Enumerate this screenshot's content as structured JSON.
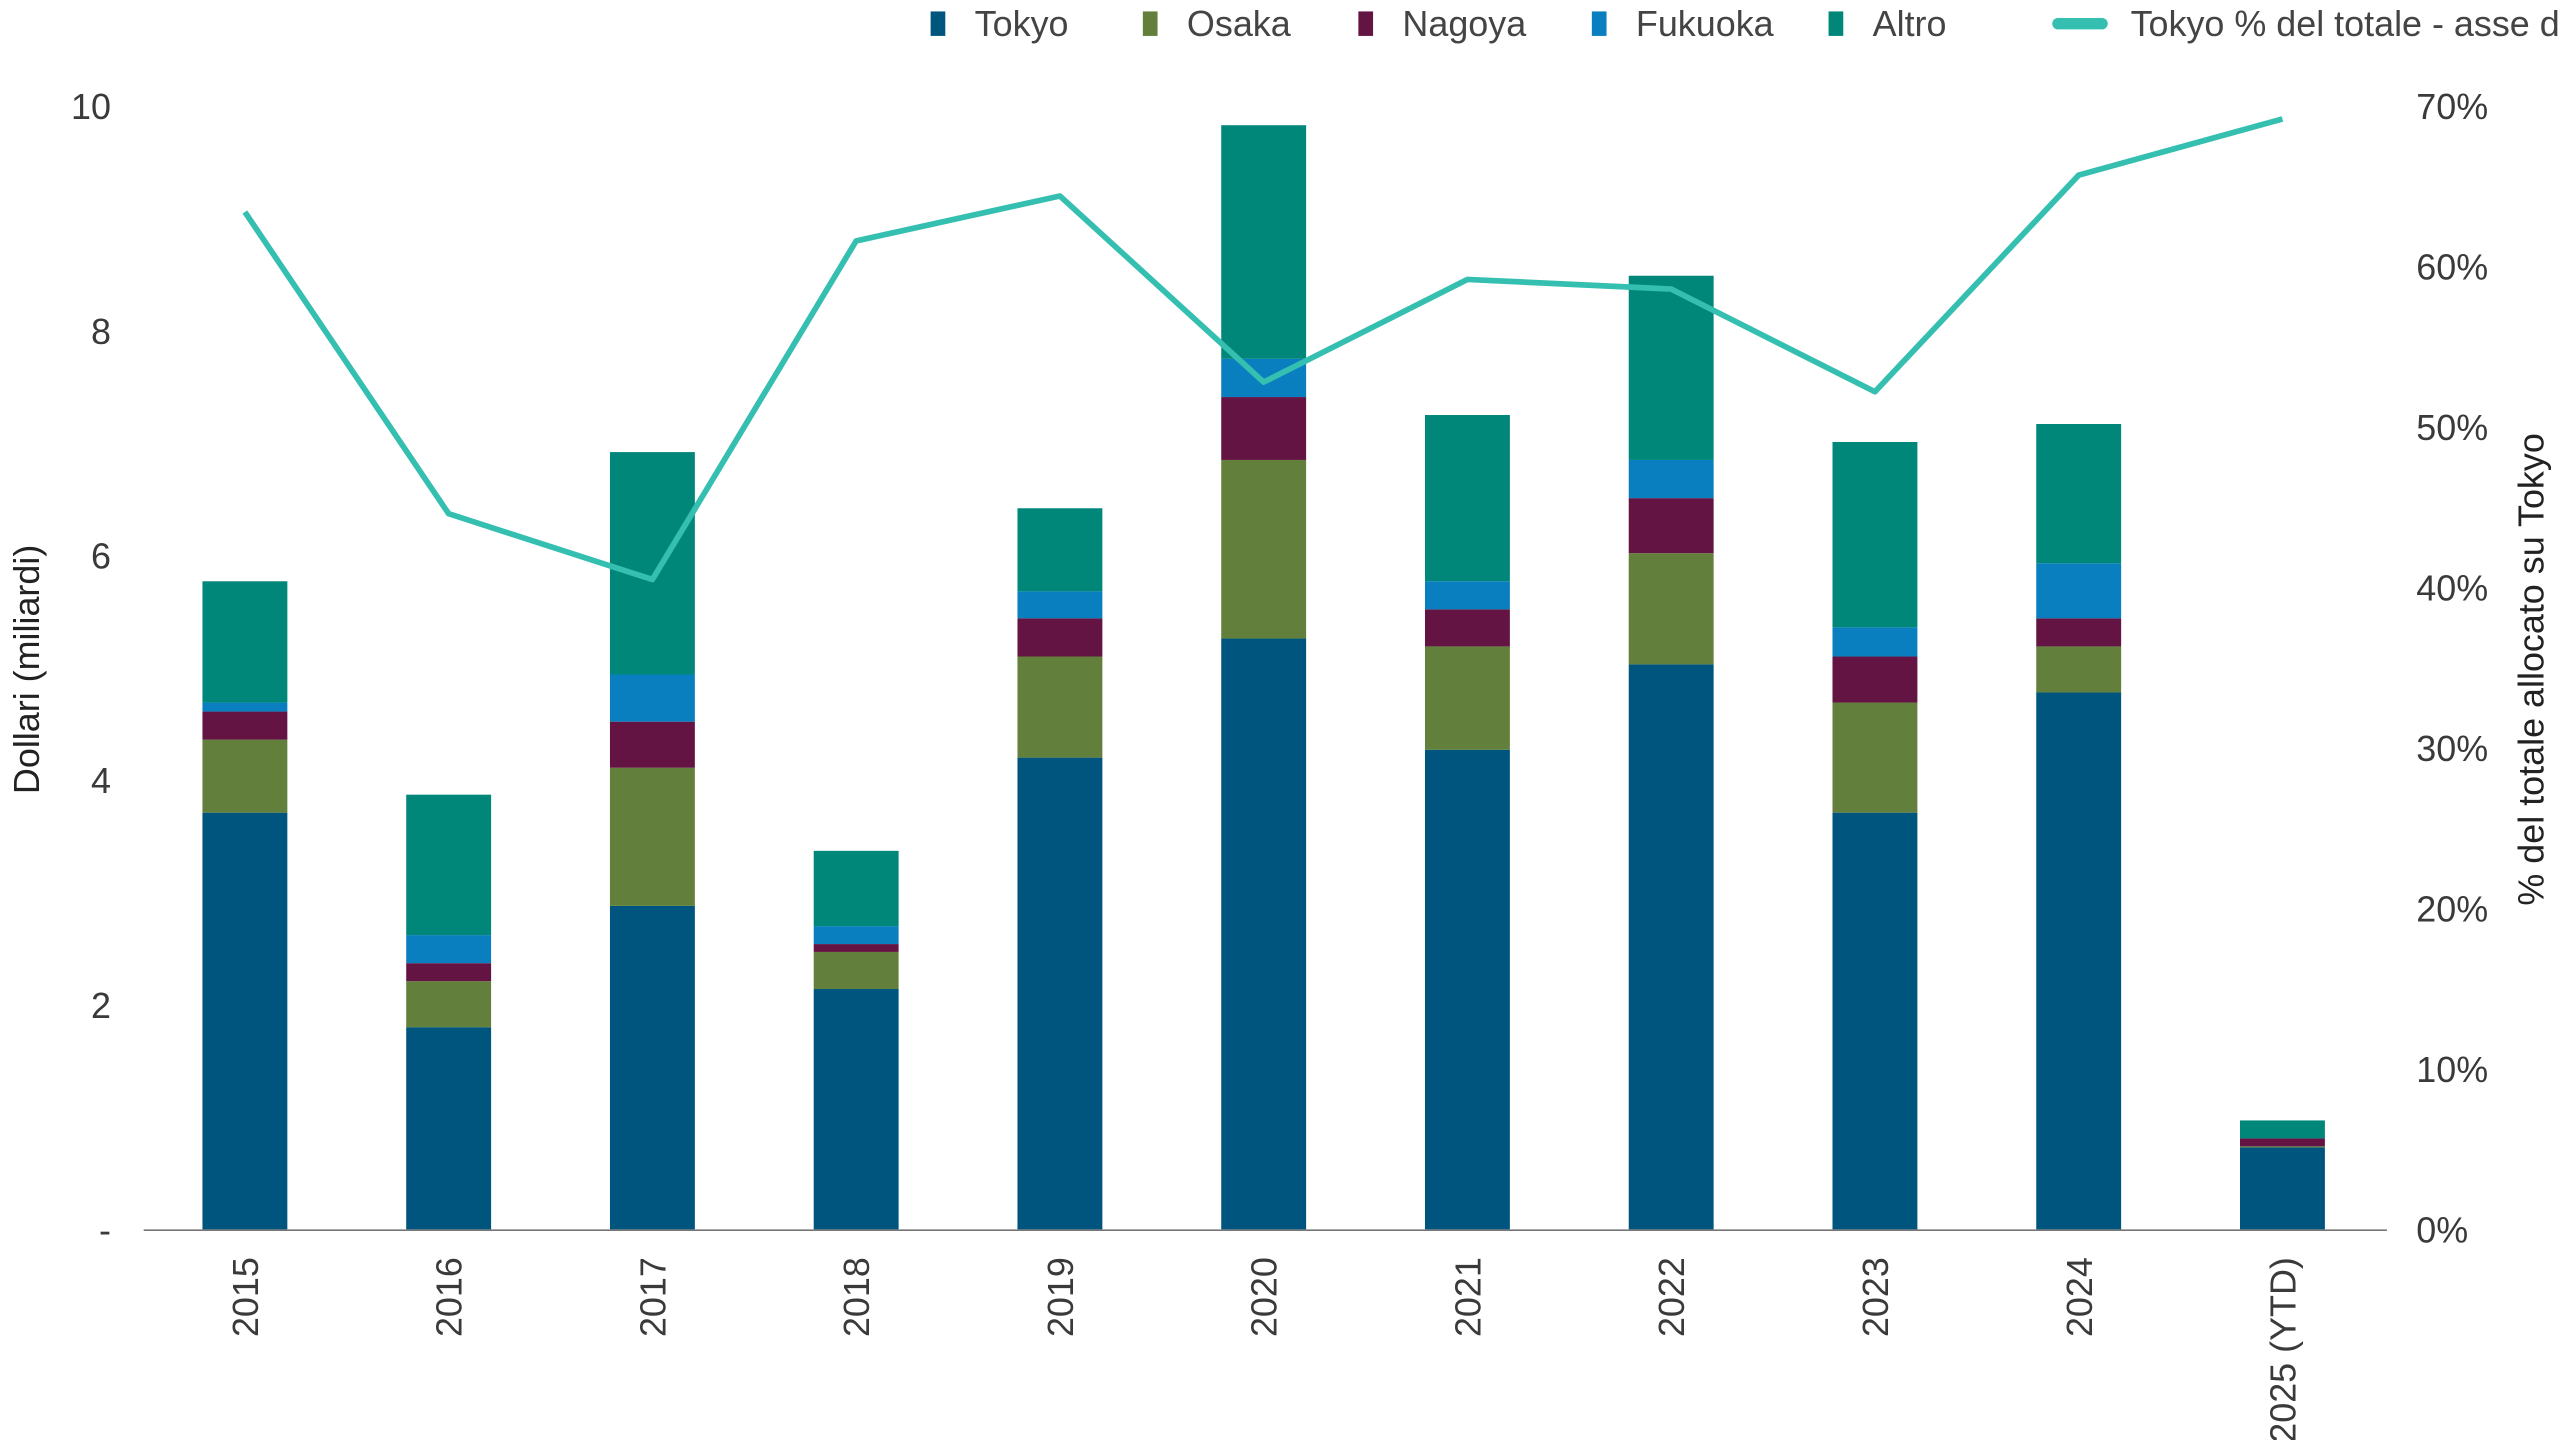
{
  "chart_data": {
    "type": "bar",
    "stacked": true,
    "categories": [
      "2015",
      "2016",
      "2017",
      "2018",
      "2019",
      "2020",
      "2021",
      "2022",
      "2023",
      "2024",
      "2025 (YTD)"
    ],
    "series": [
      {
        "name": "Tokyo",
        "color": "#00557f",
        "values": [
          3.71,
          1.8,
          2.88,
          2.14,
          4.2,
          5.26,
          4.27,
          5.03,
          3.71,
          4.78,
          0.73
        ]
      },
      {
        "name": "Osaka",
        "color": "#62803b",
        "values": [
          0.65,
          0.41,
          1.23,
          0.33,
          0.9,
          1.59,
          0.92,
          0.99,
          0.98,
          0.41,
          0.01
        ]
      },
      {
        "name": "Nagoya",
        "color": "#641443",
        "values": [
          0.25,
          0.16,
          0.41,
          0.07,
          0.34,
          0.56,
          0.33,
          0.49,
          0.41,
          0.25,
          0.07
        ]
      },
      {
        "name": "Fukuoka",
        "color": "#0a7fbf",
        "values": [
          0.08,
          0.25,
          0.42,
          0.16,
          0.24,
          0.34,
          0.25,
          0.34,
          0.26,
          0.49,
          0.0
        ]
      },
      {
        "name": "Altro",
        "color": "#00877a",
        "values": [
          1.08,
          1.25,
          1.98,
          0.67,
          0.74,
          2.08,
          1.48,
          1.64,
          1.65,
          1.24,
          0.16
        ]
      }
    ],
    "line_series": {
      "name": "Tokyo % del totale - asse dx",
      "color": "#35bfb0",
      "axis": "right",
      "values": [
        63.4,
        44.6,
        40.5,
        61.6,
        64.4,
        52.8,
        59.2,
        58.6,
        52.2,
        65.7,
        69.2
      ]
    },
    "ylabel": "Dollari (miliardi)",
    "y2label": "% del totale allocato su Tokyo",
    "ylim": [
      0,
      10
    ],
    "y2lim": [
      0,
      70
    ],
    "yticks": [
      "-",
      "2",
      "4",
      "6",
      "8",
      "10"
    ],
    "y2ticks": [
      "0%",
      "10%",
      "20%",
      "30%",
      "40%",
      "50%",
      "60%",
      "70%"
    ],
    "grid": false,
    "legend_position": "top"
  }
}
